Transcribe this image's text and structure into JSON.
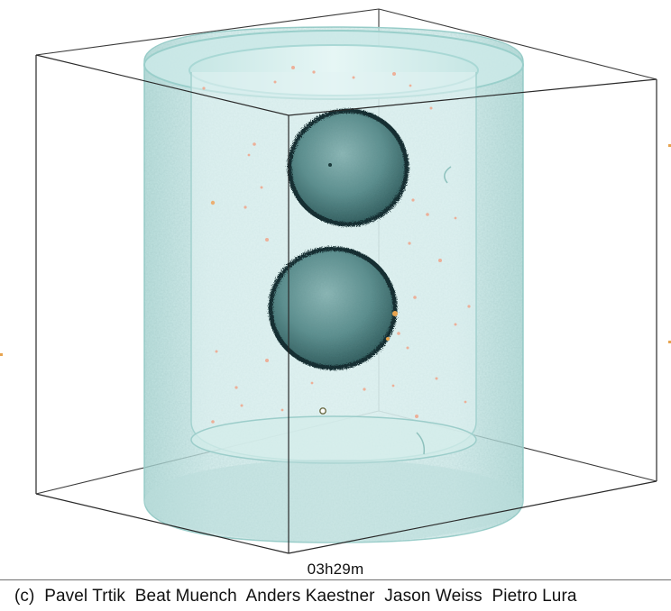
{
  "timestamp": "03h29m",
  "credit": "(c)  Pavel Trtik  Beat Muench  Anders Kaestner  Jason Weiss  Pietro Lura",
  "colors": {
    "background": "#ffffff",
    "cylinder_fill": "#bfe3e1",
    "cylinder_edge": "#8fc9c6",
    "sphere_dark": "#183a3c",
    "sphere_mid": "#5d8f8f",
    "bounding_box": "#2a2a2a",
    "pore_dots": "#f0a58a"
  },
  "scene_objects": [
    "bounding-box",
    "transparent-cylinder",
    "upper-particle",
    "lower-particle",
    "orange-pores"
  ]
}
